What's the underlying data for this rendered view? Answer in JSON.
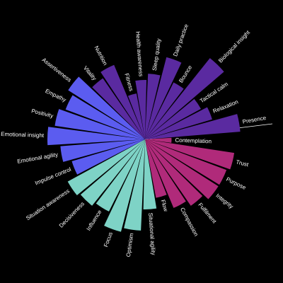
{
  "chart_data": {
    "type": "radial_bar",
    "categories": [
      "Contemplation",
      "Trust",
      "Purpose",
      "Integrity",
      "Fulfilment",
      "Compassion",
      "Flow",
      "Situational agility",
      "Optimism",
      "Focus",
      "Influence",
      "Decisiveness",
      "Situation awareness",
      "Impulse control",
      "Emotional agility",
      "Emotional insight",
      "Positivity",
      "Empathy",
      "Assertiveness",
      "Vitality",
      "Nutrition",
      "Fitness",
      "Health awareness",
      "Sleep quality",
      "Daily practice",
      "Bounce",
      "Biological insight",
      "Tactical calm",
      "Relaxation",
      "Presence"
    ],
    "values": [
      25,
      85,
      82,
      82,
      76,
      70,
      56,
      66,
      86,
      90,
      76,
      80,
      83,
      72,
      80,
      92,
      86,
      80,
      86,
      70,
      76,
      44,
      56,
      62,
      80,
      60,
      98,
      60,
      66,
      90
    ],
    "colors": [
      "#b02a7a",
      "#b02a7a",
      "#b02a7a",
      "#b02a7a",
      "#b02a7a",
      "#b02a7a",
      "#b02a7a",
      "#7ed3c6",
      "#7ed3c6",
      "#7ed3c6",
      "#7ed3c6",
      "#7ed3c6",
      "#7ed3c6",
      "#5b5cf0",
      "#5b5cf0",
      "#5b5cf0",
      "#5b5cf0",
      "#5b5cf0",
      "#5b5cf0",
      "#5a2aa0",
      "#5a2aa0",
      "#5a2aa0",
      "#5a2aa0",
      "#5a2aa0",
      "#5a2aa0",
      "#5a2aa0",
      "#5a2aa0",
      "#5a2aa0",
      "#5a2aa0",
      "#5a2aa0"
    ],
    "rlim": [
      0,
      100
    ]
  }
}
